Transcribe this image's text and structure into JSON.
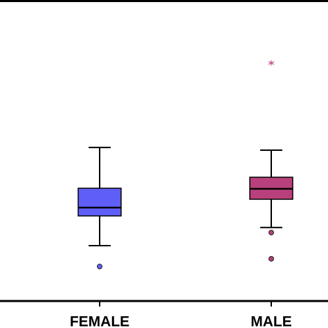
{
  "chart_data": {
    "type": "box",
    "categories": [
      "FEMALE",
      "MALE"
    ],
    "ylim": [
      0,
      100
    ],
    "boxes": [
      {
        "min": 18.6,
        "q1": 28.6,
        "median": 31.4,
        "q3": 37.9,
        "max": 51.6,
        "outliers": [
          11.6
        ],
        "extremes": [],
        "color": "#5f5ff7"
      },
      {
        "min": 24.7,
        "q1": 34.2,
        "median": 37.7,
        "q3": 41.6,
        "max": 50.7,
        "outliers": [
          23.0,
          14.2
        ],
        "extremes": [
          80.0
        ],
        "color": "#b8407c"
      }
    ]
  }
}
